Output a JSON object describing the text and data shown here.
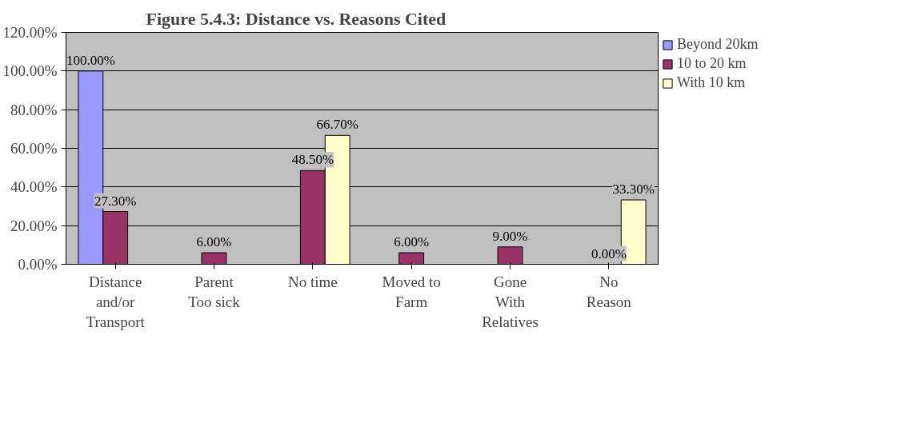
{
  "chart_data": {
    "type": "bar",
    "title": "Figure 5.4.3: Distance vs. Reasons Cited",
    "categories": [
      "Distance and/or Transport",
      "Parent Too sick",
      "No time",
      "Moved to Farm",
      "Gone With Relatives",
      "No Reason"
    ],
    "series": [
      {
        "name": "Beyond 20km",
        "color": "#9999ff",
        "values": [
          100,
          null,
          null,
          null,
          null,
          null
        ],
        "value_labels": [
          "100.00%",
          null,
          null,
          null,
          null,
          null
        ]
      },
      {
        "name": "10 to 20 km",
        "color": "#993366",
        "values": [
          27.3,
          6.0,
          48.5,
          6.0,
          9.0,
          0.0
        ],
        "value_labels": [
          "27.30%",
          "6.00%",
          "48.50%",
          "6.00%",
          "9.00%",
          "0.00%"
        ]
      },
      {
        "name": "With 10 km",
        "color": "#ffffcc",
        "values": [
          null,
          null,
          66.7,
          null,
          null,
          33.3
        ],
        "value_labels": [
          null,
          null,
          "66.70%",
          null,
          null,
          "33.30%"
        ]
      }
    ],
    "ylim": [
      0,
      120
    ],
    "yticks": [
      {
        "value": 0,
        "label": "0.00%"
      },
      {
        "value": 20,
        "label": "20.00%"
      },
      {
        "value": 40,
        "label": "40.00%"
      },
      {
        "value": 60,
        "label": "60.00%"
      },
      {
        "value": 80,
        "label": "80.00%"
      },
      {
        "value": 100,
        "label": "100.00%"
      },
      {
        "value": 120,
        "label": "120.00%"
      }
    ],
    "grid": "y",
    "legend": "right"
  }
}
